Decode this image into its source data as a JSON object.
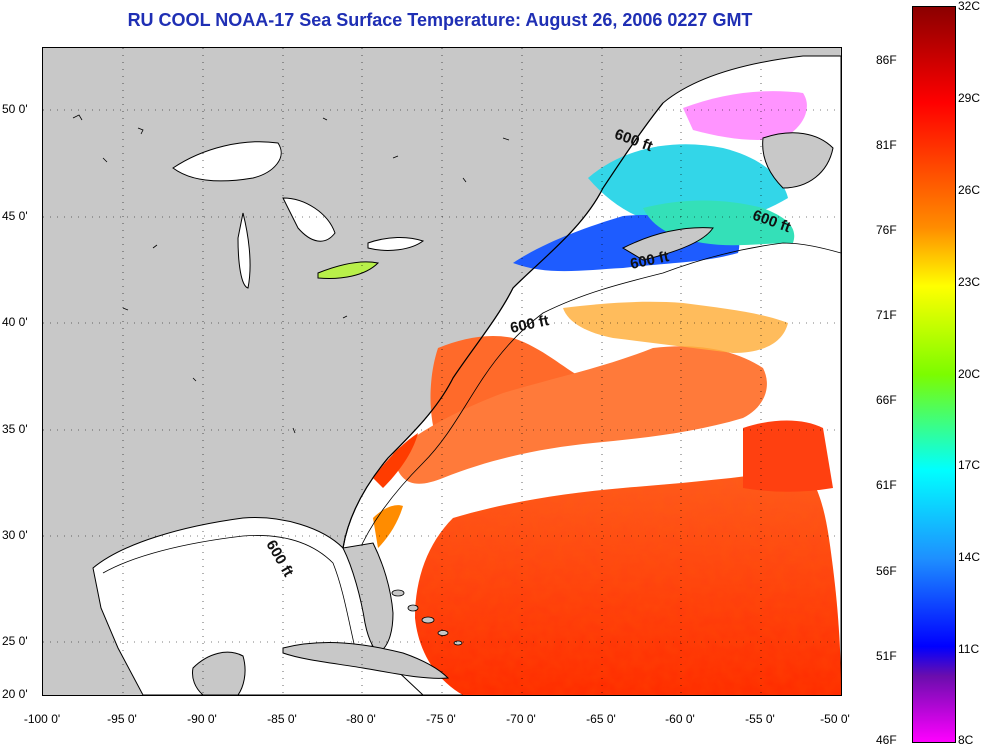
{
  "title": "RU COOL  NOAA-17  Sea Surface Temperature:  August 26, 2006 0227 GMT",
  "x_ticks": [
    "-100 0'",
    "-95 0'",
    "-90 0'",
    "-85 0'",
    "-80 0'",
    "-75 0'",
    "-70 0'",
    "-65 0'",
    "-60 0'",
    "-55 0'",
    "-50 0'"
  ],
  "y_ticks": [
    "50 0'",
    "45 0'",
    "40 0'",
    "35 0'",
    "30 0'",
    "25 0'",
    "20 0'"
  ],
  "colorbar": {
    "fahrenheit_labels": [
      "86F",
      "81F",
      "76F",
      "71F",
      "66F",
      "61F",
      "56F",
      "51F",
      "46F"
    ],
    "celsius_labels": [
      "32C",
      "29C",
      "26C",
      "23C",
      "20C",
      "17C",
      "14C",
      "11C",
      "8C"
    ],
    "colors": [
      "#8b0000",
      "#ff0000",
      "#ff8c00",
      "#ffff00",
      "#7cfc00",
      "#00ffff",
      "#1e90ff",
      "#0000ff",
      "#ff00ff"
    ]
  },
  "contour_labels": [
    "600 ft",
    "600 ft",
    "600 ft",
    "600 ft",
    "600 ft"
  ],
  "colors": {
    "land": "#c8c8c8",
    "cloud_or_nodata": "#ffffff",
    "title": "#1f2fb4"
  }
}
